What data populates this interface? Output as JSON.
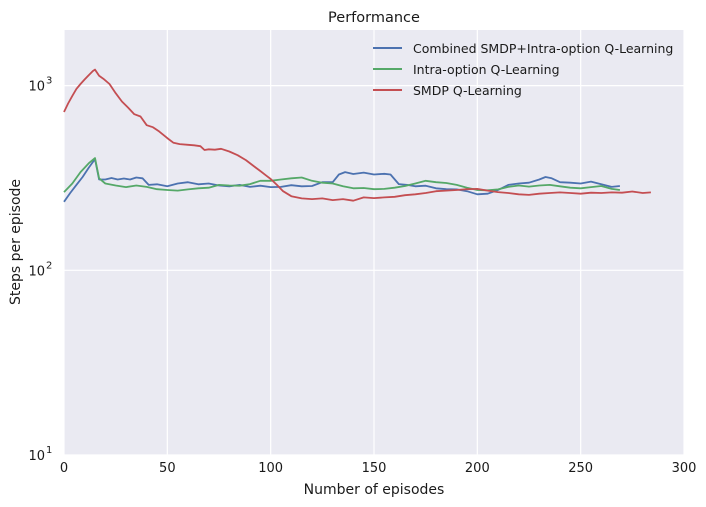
{
  "chart_data": {
    "type": "line",
    "title": "Performance",
    "xlabel": "Number of episodes",
    "ylabel": "Steps per episode",
    "xlim": [
      0,
      300
    ],
    "ylim": [
      10,
      2000
    ],
    "yscale": "log",
    "grid": true,
    "legend_position": "top-right",
    "x_ticks": [
      0,
      50,
      100,
      150,
      200,
      250,
      300
    ],
    "x_tick_labels": [
      "0",
      "50",
      "100",
      "150",
      "200",
      "250",
      "300"
    ],
    "y_ticks": [
      10,
      100,
      1000
    ],
    "y_tick_labels": [
      {
        "base": "10",
        "exp": "1"
      },
      {
        "base": "10",
        "exp": "2"
      },
      {
        "base": "10",
        "exp": "3"
      }
    ],
    "colors": {
      "background": "#EAEAF2",
      "grid": "#FFFFFF"
    },
    "series": [
      {
        "name": "Combined SMDP+Intra-option Q-Learning",
        "color": "#4C72B0",
        "x": [
          0,
          3,
          6,
          9,
          12,
          15,
          17,
          20,
          23,
          26,
          29,
          32,
          35,
          38,
          41,
          45,
          50,
          55,
          60,
          65,
          70,
          75,
          80,
          85,
          90,
          95,
          100,
          105,
          110,
          115,
          120,
          125,
          130,
          133,
          136,
          140,
          145,
          150,
          155,
          158,
          162,
          166,
          170,
          175,
          180,
          185,
          190,
          195,
          200,
          205,
          210,
          215,
          220,
          225,
          230,
          233,
          236,
          240,
          245,
          250,
          255,
          260,
          265,
          269
        ],
        "y": [
          235,
          262,
          290,
          320,
          360,
          400,
          310,
          310,
          316,
          310,
          314,
          310,
          318,
          315,
          290,
          292,
          285,
          295,
          300,
          292,
          295,
          288,
          285,
          290,
          283,
          287,
          282,
          283,
          289,
          285,
          286,
          300,
          300,
          330,
          340,
          332,
          338,
          330,
          333,
          330,
          293,
          290,
          285,
          287,
          278,
          275,
          274,
          268,
          258,
          260,
          272,
          290,
          295,
          298,
          310,
          320,
          315,
          300,
          298,
          295,
          302,
          292,
          283,
          286
        ]
      },
      {
        "name": "Intra-option Q-Learning",
        "color": "#55A868",
        "x": [
          0,
          4,
          8,
          12,
          15,
          17,
          20,
          25,
          30,
          35,
          40,
          45,
          50,
          55,
          60,
          65,
          70,
          75,
          80,
          85,
          90,
          95,
          100,
          105,
          110,
          115,
          120,
          125,
          130,
          135,
          140,
          145,
          150,
          155,
          160,
          165,
          170,
          175,
          180,
          185,
          190,
          195,
          200,
          205,
          210,
          215,
          220,
          225,
          230,
          235,
          240,
          245,
          250,
          255,
          260,
          265,
          269
        ],
        "y": [
          265,
          295,
          340,
          380,
          405,
          315,
          295,
          288,
          282,
          288,
          283,
          275,
          272,
          270,
          274,
          278,
          280,
          290,
          288,
          287,
          293,
          305,
          305,
          310,
          315,
          318,
          305,
          298,
          295,
          285,
          278,
          279,
          275,
          276,
          280,
          286,
          295,
          305,
          300,
          297,
          290,
          280,
          272,
          271,
          274,
          283,
          288,
          284,
          288,
          290,
          285,
          280,
          278,
          282,
          286,
          276,
          272
        ]
      },
      {
        "name": "SMDP Q-Learning",
        "color": "#C44E52",
        "x": [
          0,
          2,
          4,
          6,
          8,
          10,
          12,
          14,
          15,
          17,
          19,
          22,
          25,
          28,
          31,
          34,
          37,
          40,
          43,
          46,
          50,
          53,
          56,
          60,
          63,
          66,
          68,
          70,
          73,
          76,
          80,
          84,
          88,
          92,
          95,
          98,
          100,
          103,
          106,
          110,
          115,
          120,
          125,
          130,
          135,
          140,
          145,
          150,
          155,
          160,
          165,
          170,
          175,
          180,
          185,
          190,
          195,
          200,
          205,
          210,
          215,
          220,
          225,
          230,
          235,
          240,
          245,
          250,
          255,
          260,
          265,
          270,
          275,
          280,
          284
        ],
        "y": [
          720,
          800,
          880,
          960,
          1020,
          1080,
          1140,
          1200,
          1220,
          1130,
          1090,
          1020,
          910,
          820,
          760,
          700,
          680,
          610,
          595,
          565,
          520,
          490,
          482,
          478,
          475,
          470,
          448,
          452,
          450,
          455,
          440,
          420,
          395,
          365,
          345,
          325,
          312,
          290,
          268,
          252,
          245,
          243,
          245,
          240,
          243,
          238,
          248,
          246,
          248,
          250,
          255,
          258,
          262,
          268,
          270,
          272,
          275,
          276,
          270,
          265,
          262,
          258,
          256,
          260,
          262,
          264,
          262,
          260,
          263,
          262,
          264,
          263,
          267,
          262,
          264
        ]
      }
    ]
  }
}
